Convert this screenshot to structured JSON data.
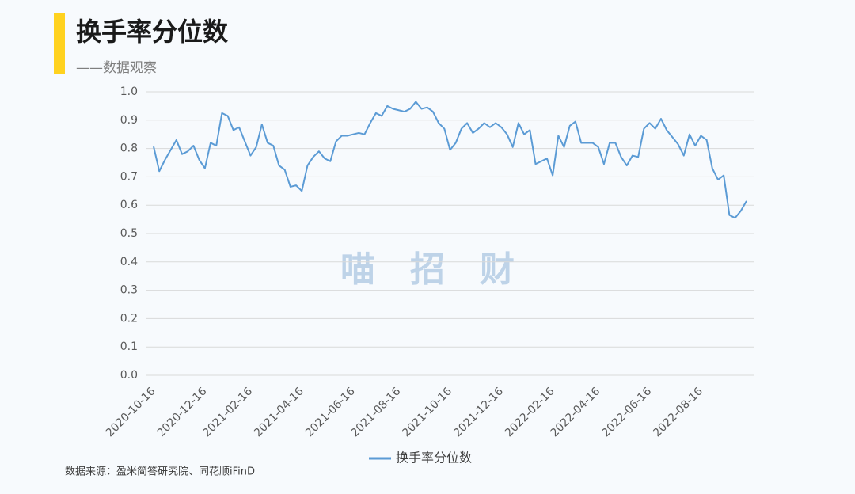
{
  "chart_data": {
    "type": "line",
    "title": "换手率分位数",
    "subtitle": "——数据观察",
    "watermark": "喵　招　财",
    "source": "数据来源：盈米简答研究院、同花顺iFinD",
    "categories": [
      "2020-10-16",
      null,
      null,
      null,
      null,
      null,
      null,
      null,
      null,
      "2020-12-16",
      null,
      null,
      null,
      null,
      null,
      null,
      null,
      "2021-02-16",
      null,
      null,
      null,
      null,
      null,
      null,
      null,
      null,
      "2021-04-16",
      null,
      null,
      null,
      null,
      null,
      null,
      null,
      null,
      "2021-06-16",
      null,
      null,
      null,
      null,
      null,
      null,
      null,
      "2021-08-16",
      null,
      null,
      null,
      null,
      null,
      null,
      null,
      null,
      "2021-10-16",
      null,
      null,
      null,
      null,
      null,
      null,
      null,
      null,
      "2021-12-16",
      null,
      null,
      null,
      null,
      null,
      null,
      null,
      null,
      "2022-02-16",
      null,
      null,
      null,
      null,
      null,
      null,
      null,
      "2022-04-16",
      null,
      null,
      null,
      null,
      null,
      null,
      null,
      null,
      "2022-06-16",
      null,
      null,
      null,
      null,
      null,
      null,
      null,
      null,
      "2022-08-16",
      null,
      null,
      null,
      null,
      null,
      null,
      null,
      null
    ],
    "series": [
      {
        "name": "换手率分位数",
        "color": "#5b9bd5",
        "values": [
          0.807,
          0.72,
          0.76,
          0.795,
          0.83,
          0.78,
          0.79,
          0.81,
          0.76,
          0.73,
          0.82,
          0.81,
          0.925,
          0.915,
          0.865,
          0.875,
          0.825,
          0.775,
          0.805,
          0.885,
          0.82,
          0.81,
          0.74,
          0.725,
          0.665,
          0.67,
          0.65,
          0.74,
          0.77,
          0.79,
          0.765,
          0.755,
          0.825,
          0.845,
          0.845,
          0.85,
          0.855,
          0.85,
          0.89,
          0.925,
          0.915,
          0.95,
          0.94,
          0.935,
          0.93,
          0.94,
          0.965,
          0.94,
          0.945,
          0.93,
          0.89,
          0.87,
          0.795,
          0.82,
          0.87,
          0.89,
          0.855,
          0.87,
          0.89,
          0.875,
          0.89,
          0.875,
          0.85,
          0.805,
          0.89,
          0.85,
          0.865,
          0.745,
          0.755,
          0.765,
          0.705,
          0.845,
          0.805,
          0.88,
          0.895,
          0.82,
          0.82,
          0.82,
          0.805,
          0.745,
          0.82,
          0.82,
          0.77,
          0.74,
          0.775,
          0.77,
          0.87,
          0.89,
          0.87,
          0.905,
          0.865,
          0.84,
          0.815,
          0.775,
          0.85,
          0.81,
          0.845,
          0.83,
          0.73,
          0.69,
          0.705,
          0.565,
          0.555,
          0.58,
          0.615
        ]
      }
    ],
    "ylim": [
      0,
      1
    ],
    "yticks": [
      {
        "value": 0,
        "label": "0.0"
      },
      0.1,
      0.2,
      0.3,
      0.4,
      0.5,
      0.6,
      0.7,
      0.8,
      0.9,
      {
        "value": 1,
        "label": "1.0"
      }
    ],
    "grid": true,
    "legend": "bottom"
  }
}
